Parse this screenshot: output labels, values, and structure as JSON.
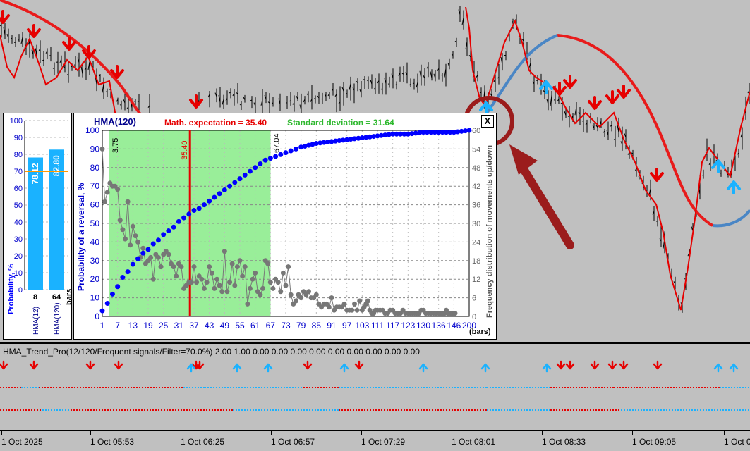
{
  "colors": {
    "uptrend": "#4a86c5",
    "downtrend": "#e60000",
    "slow_hma": "#e81b1b",
    "arrow_up": "#1ab2ff",
    "arrow_down": "#e60000",
    "accent_green": "#33cc33",
    "highlight_circle": "#9b1c1c"
  },
  "stats_panel": {
    "title": "HMA(120)",
    "math_expectation": "Math. expectation = 35.40",
    "std_deviation": "Standard deviation = 31.64",
    "y_left_label": "Probability of a reversal, %",
    "y_right_label": "Frequency distribution of movements up/down",
    "x_unit": "(bars)",
    "marker_start": "3.75",
    "marker_mean": "35.40",
    "marker_end": "67.04",
    "close_label": "X",
    "y_left_ticks": [
      "0",
      "10",
      "20",
      "30",
      "40",
      "50",
      "60",
      "70",
      "80",
      "90",
      "100"
    ],
    "y_right_ticks": [
      "0",
      "6",
      "12",
      "18",
      "24",
      "30",
      "36",
      "42",
      "48",
      "54",
      "60"
    ],
    "x_ticks": [
      "1",
      "7",
      "13",
      "19",
      "25",
      "31",
      "37",
      "43",
      "49",
      "55",
      "61",
      "67",
      "73",
      "79",
      "85",
      "91",
      "97",
      "103",
      "111",
      "117",
      "123",
      "130",
      "136",
      "146",
      "200"
    ]
  },
  "probability_panel": {
    "y_label": "Probability, %",
    "y_ticks": [
      "0",
      "10",
      "20",
      "30",
      "40",
      "50",
      "60",
      "70",
      "80",
      "90",
      "100"
    ],
    "bars": [
      {
        "value": "78.12",
        "period": "8",
        "name": "HMA(12)"
      },
      {
        "value": "82.80",
        "period": "64",
        "name": "HMA(120)"
      }
    ],
    "bars_unit": "bars",
    "threshold": 70
  },
  "indicator": {
    "title": "HMA_Trend_Pro(12/120/Frequent signals/Filter=70.0%) 2.00 1.00 0.00 0.00 0.00 0.00 0.00 0.00 0.00 0.00 0.00"
  },
  "time_axis": [
    "1 Oct 2025",
    "1 Oct 05:53",
    "1 Oct 06:25",
    "1 Oct 06:57",
    "1 Oct 07:29",
    "1 Oct 08:01",
    "1 Oct 08:33",
    "1 Oct 09:05",
    "1 Oct 0"
  ],
  "chart_data": {
    "type": "line",
    "title": "HMA(120)",
    "xlabel": "(bars)",
    "ylabel": "Probability of a reversal, %",
    "ylim": [
      0,
      100
    ],
    "y2lim": [
      0,
      60
    ],
    "series": [
      {
        "name": "Probability of a reversal, %",
        "values": [
          [
            1,
            3
          ],
          [
            3,
            7
          ],
          [
            5,
            12
          ],
          [
            7,
            16
          ],
          [
            9,
            21
          ],
          [
            11,
            24
          ],
          [
            13,
            28
          ],
          [
            15,
            31
          ],
          [
            17,
            34
          ],
          [
            19,
            36
          ],
          [
            21,
            39
          ],
          [
            23,
            41
          ],
          [
            25,
            44
          ],
          [
            27,
            46
          ],
          [
            29,
            48
          ],
          [
            31,
            51
          ],
          [
            33,
            53
          ],
          [
            35,
            55
          ],
          [
            37,
            57
          ],
          [
            39,
            58
          ],
          [
            41,
            60
          ],
          [
            43,
            62
          ],
          [
            45,
            64
          ],
          [
            47,
            66
          ],
          [
            49,
            68
          ],
          [
            51,
            70
          ],
          [
            53,
            72
          ],
          [
            55,
            74
          ],
          [
            57,
            76
          ],
          [
            59,
            78
          ],
          [
            61,
            80
          ],
          [
            63,
            82
          ],
          [
            65,
            84
          ],
          [
            67,
            85
          ],
          [
            71,
            87
          ],
          [
            75,
            89
          ],
          [
            79,
            91
          ],
          [
            85,
            93
          ],
          [
            91,
            94
          ],
          [
            97,
            95
          ],
          [
            103,
            96
          ],
          [
            111,
            97
          ],
          [
            117,
            98
          ],
          [
            123,
            98
          ],
          [
            130,
            99
          ],
          [
            136,
            99
          ],
          [
            146,
            99
          ],
          [
            200,
            100
          ]
        ]
      },
      {
        "name": "Frequency distribution of movements up/down",
        "values": [
          [
            1,
            54
          ],
          [
            2,
            37
          ],
          [
            3,
            40
          ],
          [
            4,
            43
          ],
          [
            5,
            42
          ],
          [
            6,
            42
          ],
          [
            7,
            41
          ],
          [
            8,
            31
          ],
          [
            9,
            28
          ],
          [
            10,
            25
          ],
          [
            11,
            37
          ],
          [
            12,
            23
          ],
          [
            13,
            29
          ],
          [
            14,
            26
          ],
          [
            15,
            24
          ],
          [
            16,
            19
          ],
          [
            17,
            22
          ],
          [
            18,
            17
          ],
          [
            19,
            18
          ],
          [
            20,
            19
          ],
          [
            21,
            12
          ],
          [
            22,
            20
          ],
          [
            23,
            19
          ],
          [
            24,
            16
          ],
          [
            25,
            20
          ],
          [
            26,
            21
          ],
          [
            27,
            20
          ],
          [
            28,
            17
          ],
          [
            29,
            16
          ],
          [
            30,
            13
          ],
          [
            31,
            17
          ],
          [
            32,
            16
          ],
          [
            33,
            9
          ],
          [
            34,
            10
          ],
          [
            35,
            11
          ],
          [
            36,
            11
          ],
          [
            37,
            16
          ],
          [
            38,
            11
          ],
          [
            39,
            13
          ],
          [
            40,
            12
          ],
          [
            41,
            9
          ],
          [
            42,
            11
          ],
          [
            43,
            16
          ],
          [
            44,
            14
          ],
          [
            45,
            9
          ],
          [
            46,
            12
          ],
          [
            47,
            10
          ],
          [
            48,
            8
          ],
          [
            49,
            21
          ],
          [
            50,
            8
          ],
          [
            51,
            11
          ],
          [
            52,
            17
          ],
          [
            53,
            10
          ],
          [
            54,
            16
          ],
          [
            55,
            18
          ],
          [
            56,
            13
          ],
          [
            57,
            16
          ],
          [
            58,
            4
          ],
          [
            59,
            9
          ],
          [
            60,
            12
          ],
          [
            61,
            14
          ],
          [
            62,
            8
          ],
          [
            63,
            7
          ],
          [
            64,
            9
          ],
          [
            65,
            18
          ],
          [
            66,
            17
          ],
          [
            67,
            11
          ],
          [
            68,
            9
          ],
          [
            69,
            12
          ],
          [
            70,
            11
          ],
          [
            71,
            8
          ],
          [
            72,
            14
          ],
          [
            73,
            10
          ],
          [
            74,
            16
          ],
          [
            75,
            7
          ],
          [
            76,
            4
          ],
          [
            77,
            5
          ],
          [
            78,
            7
          ],
          [
            79,
            6
          ],
          [
            80,
            8
          ],
          [
            81,
            7
          ],
          [
            82,
            8
          ],
          [
            83,
            6
          ],
          [
            84,
            6
          ],
          [
            85,
            7
          ],
          [
            86,
            4
          ],
          [
            87,
            3
          ],
          [
            88,
            4
          ],
          [
            89,
            4
          ],
          [
            90,
            3
          ],
          [
            91,
            6
          ],
          [
            92,
            2
          ],
          [
            93,
            3
          ],
          [
            94,
            3
          ],
          [
            95,
            3
          ],
          [
            96,
            4
          ],
          [
            97,
            2
          ],
          [
            98,
            2
          ],
          [
            99,
            2
          ],
          [
            100,
            4
          ],
          [
            101,
            2
          ],
          [
            102,
            5
          ],
          [
            103,
            2
          ],
          [
            104,
            3
          ],
          [
            105,
            4
          ],
          [
            106,
            5
          ],
          [
            107,
            2
          ],
          [
            108,
            1
          ],
          [
            109,
            1
          ],
          [
            110,
            2
          ],
          [
            111,
            2
          ],
          [
            112,
            2
          ],
          [
            113,
            2
          ],
          [
            114,
            1
          ],
          [
            115,
            1
          ],
          [
            116,
            2
          ],
          [
            117,
            2
          ],
          [
            118,
            1
          ],
          [
            119,
            1
          ],
          [
            120,
            1
          ],
          [
            121,
            2
          ],
          [
            122,
            1
          ],
          [
            123,
            1
          ],
          [
            124,
            1
          ],
          [
            125,
            1
          ],
          [
            126,
            1
          ],
          [
            127,
            1
          ],
          [
            128,
            1
          ],
          [
            129,
            2
          ],
          [
            130,
            2
          ],
          [
            131,
            1
          ],
          [
            132,
            1
          ],
          [
            133,
            1
          ],
          [
            134,
            1
          ],
          [
            135,
            1
          ],
          [
            136,
            1
          ],
          [
            137,
            1
          ],
          [
            138,
            1
          ],
          [
            139,
            1
          ],
          [
            140,
            1
          ],
          [
            141,
            2
          ],
          [
            142,
            1
          ],
          [
            143,
            1
          ],
          [
            144,
            1
          ],
          [
            145,
            1
          ],
          [
            146,
            1
          ],
          [
            147,
            1
          ],
          [
            148,
            1
          ],
          [
            149,
            1
          ],
          [
            150,
            1
          ]
        ]
      }
    ]
  }
}
